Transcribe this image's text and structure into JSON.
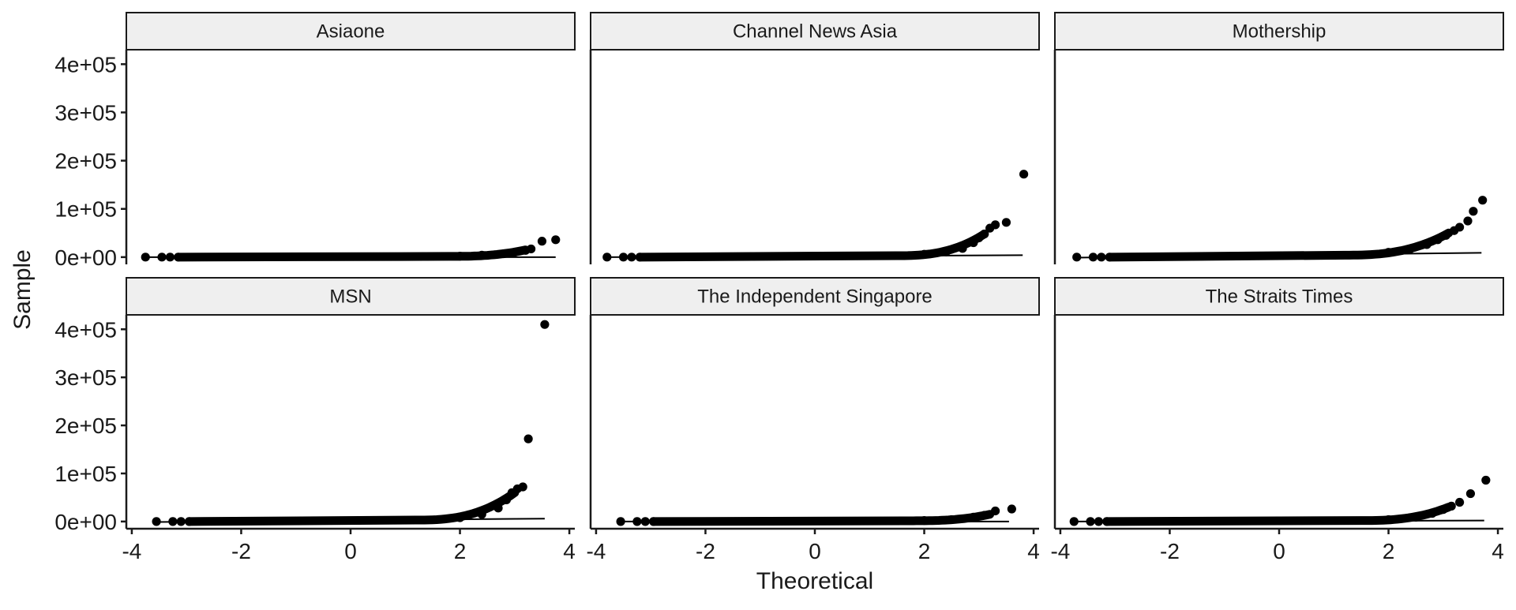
{
  "chart_data": {
    "type": "scatter",
    "subtype": "qq-plot-facets",
    "xlabel": "Theoretical",
    "ylabel": "Sample",
    "xlim": [
      -4.1,
      4.1
    ],
    "ylim": [
      -15000,
      430000
    ],
    "x_ticks": [
      -4,
      -2,
      0,
      2,
      4
    ],
    "x_tick_labels": [
      "-4",
      "-2",
      "0",
      "2",
      "4"
    ],
    "y_ticks": [
      0,
      100000,
      200000,
      300000,
      400000
    ],
    "y_tick_labels": [
      "0e+00",
      "1e+05",
      "2e+05",
      "3e+05",
      "4e+05"
    ],
    "grid": false,
    "legend": "none",
    "facet_layout": {
      "rows": 2,
      "cols": 3
    },
    "panels": [
      {
        "name": "Asiaone",
        "x_range": [
          -3.75,
          3.75
        ],
        "line": {
          "x": [
            -3.75,
            3.75
          ],
          "y": [
            0,
            0
          ]
        },
        "points": [
          [
            -3.75,
            0
          ],
          [
            -3.45,
            0
          ],
          [
            -3.3,
            0
          ],
          [
            -3.15,
            0
          ],
          [
            2.0,
            2000
          ],
          [
            2.4,
            4000
          ],
          [
            2.8,
            7000
          ],
          [
            3.0,
            10000
          ],
          [
            3.2,
            14000
          ],
          [
            3.3,
            17000
          ],
          [
            3.5,
            33000
          ],
          [
            3.75,
            36000
          ]
        ],
        "tail": {
          "curve_start": 1.8,
          "curve_end": 3.2,
          "y_start": 1500,
          "y_end": 15000
        }
      },
      {
        "name": "Channel News Asia",
        "x_range": [
          -3.8,
          3.8
        ],
        "line": {
          "x": [
            -3.8,
            3.8
          ],
          "y": [
            0,
            4000
          ]
        },
        "points": [
          [
            -3.8,
            0
          ],
          [
            -3.5,
            0
          ],
          [
            -3.35,
            0
          ],
          [
            -3.2,
            0
          ],
          [
            2.0,
            6000
          ],
          [
            2.4,
            11000
          ],
          [
            2.7,
            18000
          ],
          [
            2.9,
            30000
          ],
          [
            3.0,
            40000
          ],
          [
            3.1,
            48000
          ],
          [
            3.2,
            60000
          ],
          [
            3.3,
            67000
          ],
          [
            3.5,
            72000
          ],
          [
            3.82,
            172000
          ]
        ],
        "tail": {
          "curve_start": 1.5,
          "curve_end": 3.1,
          "y_start": 3000,
          "y_end": 48000
        }
      },
      {
        "name": "Mothership",
        "x_range": [
          -3.7,
          3.7
        ],
        "line": {
          "x": [
            -3.7,
            3.7
          ],
          "y": [
            -1000,
            9000
          ]
        },
        "points": [
          [
            -3.7,
            0
          ],
          [
            -3.4,
            0
          ],
          [
            -3.25,
            0
          ],
          [
            -3.1,
            0
          ],
          [
            2.0,
            10000
          ],
          [
            2.4,
            17000
          ],
          [
            2.7,
            26000
          ],
          [
            2.9,
            36000
          ],
          [
            3.05,
            45000
          ],
          [
            3.2,
            55000
          ],
          [
            3.3,
            62000
          ],
          [
            3.45,
            75000
          ],
          [
            3.55,
            95000
          ],
          [
            3.72,
            118000
          ]
        ],
        "tail": {
          "curve_start": 1.2,
          "curve_end": 3.1,
          "y_start": 4000,
          "y_end": 50000
        }
      },
      {
        "name": "MSN",
        "x_range": [
          -3.55,
          3.55
        ],
        "line": {
          "x": [
            -3.55,
            3.55
          ],
          "y": [
            -1000,
            6000
          ]
        },
        "points": [
          [
            -3.55,
            0
          ],
          [
            -3.25,
            0
          ],
          [
            -3.1,
            0
          ],
          [
            -2.95,
            0
          ],
          [
            2.0,
            8000
          ],
          [
            2.4,
            15000
          ],
          [
            2.7,
            28000
          ],
          [
            2.85,
            45000
          ],
          [
            2.95,
            60000
          ],
          [
            3.05,
            68000
          ],
          [
            3.15,
            72000
          ],
          [
            3.25,
            172000
          ],
          [
            3.55,
            410000
          ]
        ],
        "tail": {
          "curve_start": 1.2,
          "curve_end": 3.0,
          "y_start": 3000,
          "y_end": 60000
        }
      },
      {
        "name": "The Independent Singapore",
        "x_range": [
          -3.55,
          3.55
        ],
        "line": {
          "x": [
            -3.55,
            3.55
          ],
          "y": [
            0,
            0
          ]
        },
        "points": [
          [
            -3.55,
            0
          ],
          [
            -3.25,
            0
          ],
          [
            -3.1,
            0
          ],
          [
            -2.95,
            0
          ],
          [
            2.0,
            2000
          ],
          [
            2.5,
            4000
          ],
          [
            2.9,
            9000
          ],
          [
            3.1,
            13000
          ],
          [
            3.3,
            22000
          ],
          [
            3.6,
            26000
          ]
        ],
        "tail": {
          "curve_start": 1.8,
          "curve_end": 3.2,
          "y_start": 1500,
          "y_end": 15000
        }
      },
      {
        "name": "The Straits Times",
        "x_range": [
          -3.75,
          3.75
        ],
        "line": {
          "x": [
            -3.75,
            3.75
          ],
          "y": [
            0,
            2000
          ]
        },
        "points": [
          [
            -3.75,
            0
          ],
          [
            -3.45,
            0
          ],
          [
            -3.3,
            0
          ],
          [
            -3.15,
            0
          ],
          [
            2.0,
            4000
          ],
          [
            2.5,
            9000
          ],
          [
            2.8,
            17000
          ],
          [
            3.0,
            25000
          ],
          [
            3.15,
            32000
          ],
          [
            3.3,
            40000
          ],
          [
            3.5,
            58000
          ],
          [
            3.78,
            86000
          ]
        ],
        "tail": {
          "curve_start": 1.5,
          "curve_end": 3.1,
          "y_start": 2000,
          "y_end": 30000
        }
      }
    ]
  }
}
